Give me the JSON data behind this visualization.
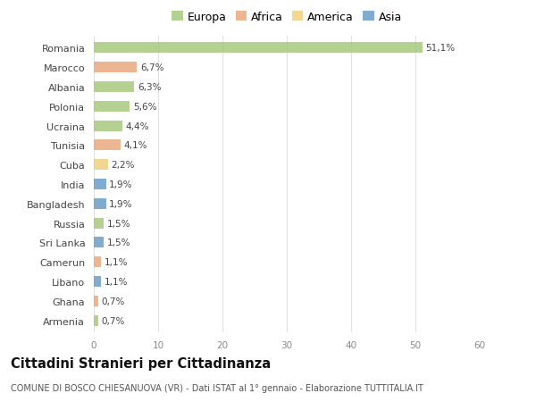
{
  "countries": [
    "Romania",
    "Marocco",
    "Albania",
    "Polonia",
    "Ucraina",
    "Tunisia",
    "Cuba",
    "India",
    "Bangladesh",
    "Russia",
    "Sri Lanka",
    "Camerun",
    "Libano",
    "Ghana",
    "Armenia"
  ],
  "values": [
    51.1,
    6.7,
    6.3,
    5.6,
    4.4,
    4.1,
    2.2,
    1.9,
    1.9,
    1.5,
    1.5,
    1.1,
    1.1,
    0.7,
    0.7
  ],
  "labels": [
    "51,1%",
    "6,7%",
    "6,3%",
    "5,6%",
    "4,4%",
    "4,1%",
    "2,2%",
    "1,9%",
    "1,9%",
    "1,5%",
    "1,5%",
    "1,1%",
    "1,1%",
    "0,7%",
    "0,7%"
  ],
  "continents": [
    "Europa",
    "Africa",
    "Europa",
    "Europa",
    "Europa",
    "Africa",
    "America",
    "Asia",
    "Asia",
    "Europa",
    "Asia",
    "Africa",
    "Asia",
    "Africa",
    "Europa"
  ],
  "colors": {
    "Europa": "#a8c97f",
    "Africa": "#e8a97e",
    "America": "#f0d080",
    "Asia": "#6b9ec8"
  },
  "legend_order": [
    "Europa",
    "Africa",
    "America",
    "Asia"
  ],
  "title": "Cittadini Stranieri per Cittadinanza",
  "subtitle": "COMUNE DI BOSCO CHIESANUOVA (VR) - Dati ISTAT al 1° gennaio - Elaborazione TUTTITALIA.IT",
  "xlim": [
    0,
    60
  ],
  "xticks": [
    0,
    10,
    20,
    30,
    40,
    50,
    60
  ],
  "background_color": "#ffffff",
  "grid_color": "#e0e0e0",
  "bar_height": 0.55
}
